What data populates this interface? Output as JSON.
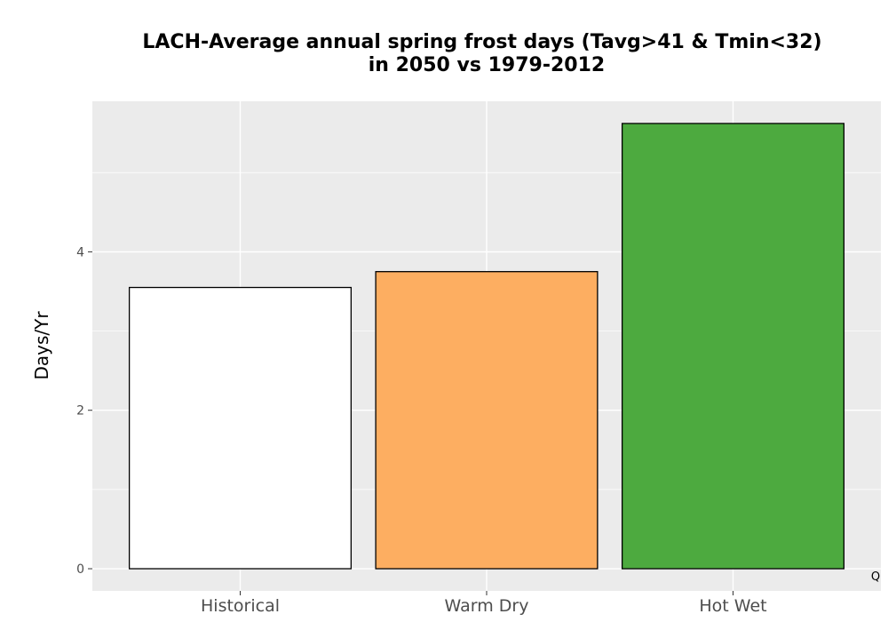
{
  "chart_data": {
    "type": "bar",
    "title_lines": [
      "LACH-Average annual spring frost days (Tavg>41 & Tmin<32)",
      "in 2050 vs 1979-2012"
    ],
    "xlabel": "",
    "ylabel": "Days/Yr",
    "categories": [
      "Historical",
      "Warm Dry",
      "Hot Wet"
    ],
    "values": [
      3.55,
      3.75,
      5.62
    ],
    "bar_colors": [
      "#ffffff",
      "#fdae61",
      "#4daa3f"
    ],
    "bar_outline_color": "#000000",
    "ylim": [
      -0.28,
      5.9
    ],
    "y_ticks": [
      0,
      2,
      4
    ],
    "y_tick_labels": [
      "0",
      "2",
      "4"
    ],
    "grid": true,
    "panel_background": "#ebebeb",
    "grid_color": "#ffffff",
    "corner_note": "Q"
  }
}
